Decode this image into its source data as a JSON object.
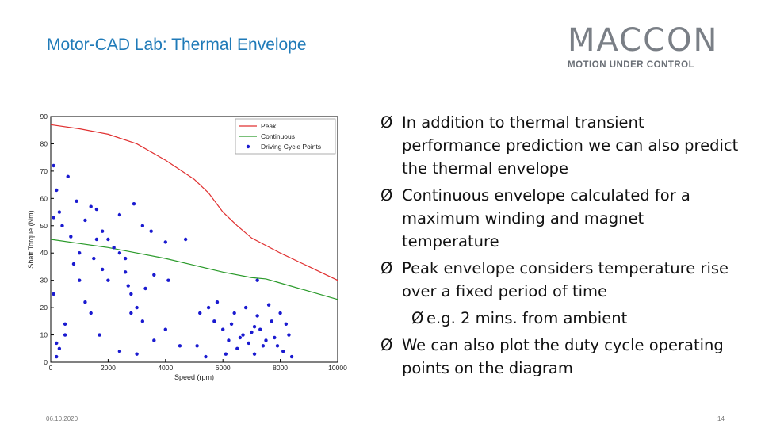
{
  "header": {
    "title": "Motor-CAD Lab: Thermal Envelope",
    "logo": "MACCON",
    "tagline": "MOTION UNDER CONTROL"
  },
  "bullet_marker": "Ø",
  "bullets": [
    {
      "level": 1,
      "text": "In addition to thermal transient performance prediction we can also predict the thermal envelope"
    },
    {
      "level": 1,
      "text": "Continuous envelope calculated for a maximum winding and magnet temperature"
    },
    {
      "level": 1,
      "text": "Peak envelope considers temperature rise over a fixed period of time"
    },
    {
      "level": 2,
      "text": "e.g. 2 mins. from ambient"
    },
    {
      "level": 1,
      "text": "We can also plot the duty cycle operating points on the diagram"
    }
  ],
  "footer": {
    "date": "06.10.2020",
    "page": "14"
  },
  "chart_data": {
    "type": "line",
    "xlabel": "Speed (rpm)",
    "ylabel": "Shaft Torque (Nm)",
    "xlim": [
      0,
      10000
    ],
    "xticks": [
      0,
      2000,
      4000,
      6000,
      8000,
      10000
    ],
    "ylim": [
      0,
      90
    ],
    "yticks": [
      0,
      10,
      20,
      30,
      40,
      50,
      60,
      70,
      80,
      90
    ],
    "legend": "upper right",
    "series": [
      {
        "name": "Peak",
        "type": "line",
        "color": "#e03030",
        "x": [
          0,
          1000,
          2000,
          3000,
          4000,
          5000,
          5500,
          6000,
          6500,
          7000,
          8000,
          9000,
          10000
        ],
        "values": [
          87,
          85.5,
          83.5,
          80,
          74,
          67,
          62,
          55,
          50,
          45.5,
          40,
          35,
          30
        ]
      },
      {
        "name": "Continuous",
        "type": "line",
        "color": "#2a9a2a",
        "x": [
          0,
          1000,
          2000,
          3000,
          4000,
          5000,
          6000,
          7000,
          7500,
          8000,
          9000,
          10000
        ],
        "values": [
          45,
          43.5,
          42,
          40,
          38,
          35.5,
          33,
          31,
          30.5,
          29,
          26,
          23
        ]
      },
      {
        "name": "Driving Cycle Points",
        "type": "scatter",
        "color": "#1a1ad0",
        "x": [
          100,
          200,
          600,
          300,
          100,
          400,
          700,
          900,
          1400,
          1600,
          1200,
          1800,
          1600,
          2400,
          2900,
          3200,
          3500,
          4700,
          4000,
          2000,
          2200,
          2400,
          2600,
          1000,
          800,
          1500,
          1800,
          2000,
          2600,
          2700,
          2800,
          3300,
          3600,
          4100,
          3000,
          2800,
          3200,
          3600,
          4000,
          4500,
          1000,
          1200,
          1400,
          1700,
          100,
          200,
          300,
          200,
          500,
          500,
          5200,
          5500,
          5700,
          6000,
          6200,
          6500,
          6700,
          6900,
          7100,
          7300,
          7500,
          7700,
          7900,
          8100,
          8300,
          8400,
          5800,
          6400,
          6800,
          7200,
          7600,
          8000,
          5400,
          6100,
          6600,
          7000,
          7400,
          7800,
          8200,
          7200,
          2400,
          3000,
          5100,
          6300,
          7100
        ],
        "values": [
          72,
          63,
          68,
          55,
          53,
          50,
          46,
          59,
          57,
          56,
          52,
          48,
          45,
          54,
          58,
          50,
          48,
          45,
          44,
          45,
          42,
          40,
          38,
          40,
          36,
          38,
          34,
          30,
          33,
          28,
          25,
          27,
          32,
          30,
          20,
          18,
          15,
          8,
          12,
          6,
          30,
          22,
          18,
          10,
          25,
          7,
          5,
          2,
          14,
          10,
          18,
          20,
          15,
          12,
          8,
          5,
          10,
          7,
          3,
          12,
          8,
          15,
          6,
          4,
          10,
          2,
          22,
          18,
          20,
          17,
          21,
          18,
          2,
          3,
          9,
          11,
          6,
          9,
          14,
          30,
          4,
          3,
          6,
          14,
          13
        ]
      }
    ]
  }
}
